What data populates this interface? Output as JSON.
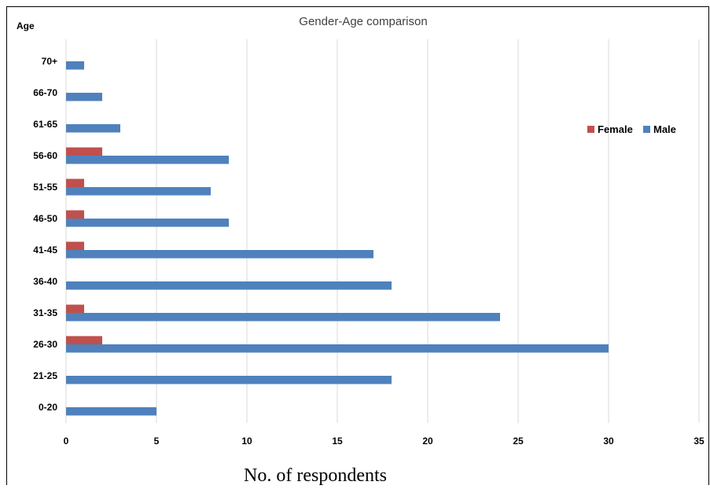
{
  "chart_data": {
    "type": "bar",
    "orientation": "horizontal",
    "title": "Gender-Age comparison",
    "ylabel": "Age",
    "xlabel": "No. of respondents",
    "categories": [
      "0-20",
      "21-25",
      "26-30",
      "31-35",
      "36-40",
      "41-45",
      "46-50",
      "51-55",
      "56-60",
      "61-65",
      "66-70",
      "70+"
    ],
    "series": [
      {
        "name": "Female",
        "color": "#C0504D",
        "values": [
          0,
          0,
          2,
          1,
          0,
          1,
          1,
          1,
          2,
          0,
          0,
          0
        ]
      },
      {
        "name": "Male",
        "color": "#4F81BD",
        "values": [
          5,
          18,
          30,
          24,
          18,
          17,
          9,
          8,
          9,
          3,
          2,
          1
        ]
      }
    ],
    "xlim": [
      0,
      35
    ],
    "xticks": [
      "0",
      "5",
      "10",
      "15",
      "20",
      "25",
      "30",
      "35"
    ],
    "grid": "vertical",
    "legend_position": "right"
  }
}
